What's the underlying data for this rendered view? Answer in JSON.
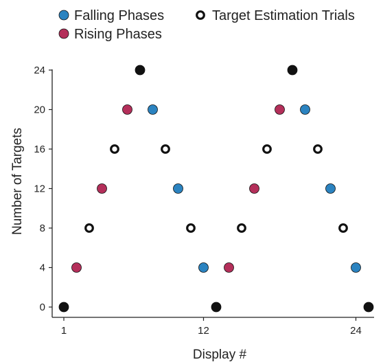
{
  "chart_data": {
    "type": "scatter",
    "title": "",
    "xlabel": "Display #",
    "ylabel": "Number of Targets",
    "xlim": [
      1,
      25
    ],
    "ylim": [
      0,
      24
    ],
    "x_ticks": [
      1,
      12,
      24
    ],
    "y_ticks": [
      0,
      4,
      8,
      12,
      16,
      20,
      24
    ],
    "grid": false,
    "legend_position": "top",
    "series": [
      {
        "name": "Falling Phases",
        "color": "#2b83c0",
        "marker": "filled-circle",
        "points": [
          [
            8,
            20
          ],
          [
            10,
            12
          ],
          [
            12,
            4
          ],
          [
            20,
            20
          ],
          [
            22,
            12
          ],
          [
            24,
            4
          ]
        ]
      },
      {
        "name": "Rising Phases",
        "color": "#b42f5a",
        "marker": "filled-circle",
        "points": [
          [
            2,
            4
          ],
          [
            4,
            12
          ],
          [
            6,
            20
          ],
          [
            14,
            4
          ],
          [
            16,
            12
          ],
          [
            18,
            20
          ]
        ]
      },
      {
        "name": "Target Estimation Trials",
        "color": "#111111",
        "marker": "mixed",
        "points": [
          [
            1,
            0
          ],
          [
            3,
            8
          ],
          [
            5,
            16
          ],
          [
            7,
            24
          ],
          [
            9,
            16
          ],
          [
            11,
            8
          ],
          [
            13,
            0
          ],
          [
            15,
            8
          ],
          [
            17,
            16
          ],
          [
            19,
            24
          ],
          [
            21,
            16
          ],
          [
            23,
            8
          ],
          [
            25,
            0
          ]
        ],
        "filled_points": [
          [
            1,
            0
          ],
          [
            7,
            24
          ],
          [
            13,
            0
          ],
          [
            19,
            24
          ],
          [
            25,
            0
          ]
        ],
        "open_points": [
          [
            3,
            8
          ],
          [
            5,
            16
          ],
          [
            9,
            16
          ],
          [
            11,
            8
          ],
          [
            15,
            8
          ],
          [
            17,
            16
          ],
          [
            21,
            16
          ],
          [
            23,
            8
          ]
        ]
      }
    ]
  }
}
